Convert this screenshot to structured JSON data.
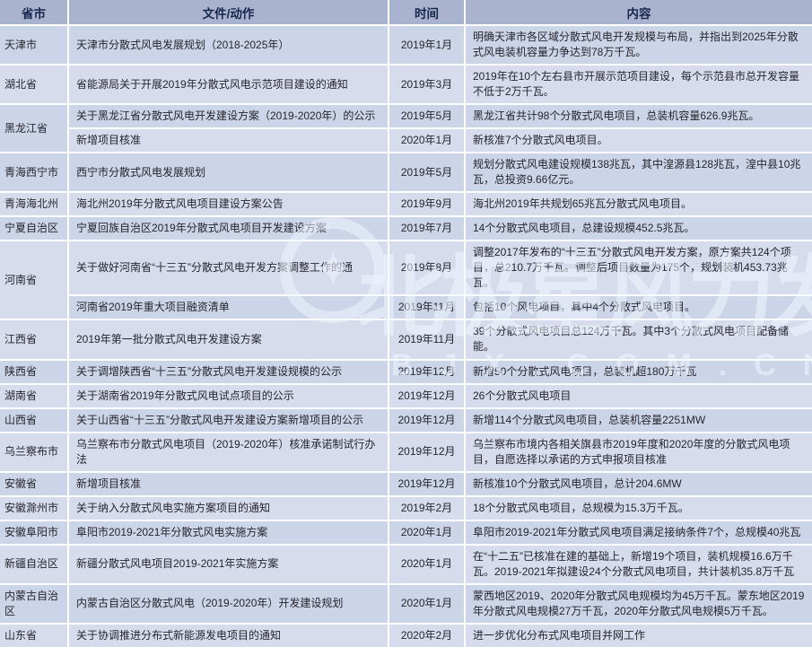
{
  "colors": {
    "header_bg": "#a9b3cd",
    "header_text": "#17264d",
    "row_dark": "#ccd4e7",
    "row_light": "#d6dcec",
    "body_text": "#26262e"
  },
  "watermark": {
    "cn": "北极星风力发电网",
    "latin": "BJX.COM.CN",
    "logo_star": "✦"
  },
  "table": {
    "headers": [
      "省市",
      "文件/动作",
      "时间",
      "内容"
    ],
    "groups": [
      {
        "province": "天津市",
        "entries": [
          {
            "doc": "天津市分散式风电发展规划（2018-2025年）",
            "time": "2019年1月",
            "content": "明确天津市各区域分散式风电开发规模与布局，并指出到2025年分散式风电装机容量力争达到78万千瓦。"
          }
        ]
      },
      {
        "province": "湖北省",
        "entries": [
          {
            "doc": "省能源局关于开展2019年分散式风电示范项目建设的通知",
            "time": "2019年3月",
            "content": "2019年在10个左右县市开展示范项目建设，每个示范县市总开发容量不低于2万千瓦。"
          }
        ]
      },
      {
        "province": "黑龙江省",
        "entries": [
          {
            "doc": "关于黑龙江省分散式风电开发建设方案（2019-2020年）的公示",
            "time": "2019年5月",
            "content": "黑龙江省共计98个分散式风电项目，总装机容量626.9兆瓦。"
          },
          {
            "doc": "新增项目核准",
            "time": "2020年1月",
            "content": "新核准7个分散式风电项目。"
          }
        ]
      },
      {
        "province": "青海西宁市",
        "entries": [
          {
            "doc": "西宁市分散式风电发展规划",
            "time": "2019年5月",
            "content": "规划分散式风电建设规模138兆瓦，其中湟源县128兆瓦，湟中县10兆瓦，总投资9.66亿元。"
          }
        ]
      },
      {
        "province": "青海海北州",
        "entries": [
          {
            "doc": "海北州2019年分散式风电项目建设方案公告",
            "time": "2019年9月",
            "content": "海北州2019年共规划65兆瓦分散式风电项目。"
          }
        ]
      },
      {
        "province": "宁夏自治区",
        "entries": [
          {
            "doc": "宁夏回族自治区2019年分散式风电项目开发建设方案",
            "time": "2019年7月",
            "content": "14个分散式风电项目，总建设规模452.5兆瓦。"
          }
        ]
      },
      {
        "province": "河南省",
        "entries": [
          {
            "doc": "关于做好河南省“十三五”分散式风电开发方案调整工作的通",
            "time": "2019年8月",
            "content": "调整2017年发布的“十三五”分散式风电开发方案，原方案共124个项目，总210.7万千瓦。调整后项目数量为175个，规划装机453.73兆瓦。"
          },
          {
            "doc": "河南省2019年重大项目融资清单",
            "time": "2019年11月",
            "content": "包括10个风电项目，其中4个分散式风电项目。"
          }
        ]
      },
      {
        "province": "江西省",
        "entries": [
          {
            "doc": "2019年第一批分散式风电开发建设方案",
            "time": "2019年11月",
            "content": "39个分散式风电项目总124万千瓦。其中3个分散式风电项目配备储能。"
          }
        ]
      },
      {
        "province": "陕西省",
        "entries": [
          {
            "doc": "关于调增陕西省“十三五”分散式风电开发建设规模的公示",
            "time": "2019年12月",
            "content": "新增50个分散式风电项目，总装机超180万千瓦"
          }
        ]
      },
      {
        "province": "湖南省",
        "entries": [
          {
            "doc": "关于湖南省2019年分散式风电试点项目的公示",
            "time": "2019年12月",
            "content": "26个分散式风电项目"
          }
        ]
      },
      {
        "province": "山西省",
        "entries": [
          {
            "doc": "关于山西省“十三五”分散式风电开发建设方案新增项目的公示",
            "time": "2019年12月",
            "content": "新增114个分散式风电项目，总装机容量2251MW"
          }
        ]
      },
      {
        "province": "乌兰察布市",
        "entries": [
          {
            "doc": "乌兰察布市分散式风电项目（2019-2020年）核准承诺制试行办法",
            "time": "2019年12月",
            "content": "乌兰察布市境内各相关旗县市2019年度和2020年度的分散式风电项目，自愿选择以承诺的方式申报项目核准"
          }
        ]
      },
      {
        "province": "安徽省",
        "entries": [
          {
            "doc": "新增项目核准",
            "time": "2019年12月",
            "content": "新核准10个分散式风电项目，总计204.6MW"
          }
        ]
      },
      {
        "province": "安徽滁州市",
        "entries": [
          {
            "doc": "关于纳入分散式风电实施方案项目的通知",
            "time": "2019年2月",
            "content": "18个分散式风电项目，总规模为15.3万千瓦。"
          }
        ]
      },
      {
        "province": "安徽阜阳市",
        "entries": [
          {
            "doc": "阜阳市2019-2021年分散式风电实施方案",
            "time": "2020年1月",
            "content": "阜阳市2019-2021年分散式风电项目满足接纳条件7个，总规模40兆瓦"
          }
        ]
      },
      {
        "province": "新疆自治区",
        "entries": [
          {
            "doc": "新疆分散式风电项目2019-2021年实施方案",
            "time": "2020年1月",
            "content": "在“十二五”已核准在建的基础上，新增19个项目，装机规模16.6万千瓦。2019-2021年拟建设24个分散式风电项目，共计装机35.8万千瓦"
          }
        ]
      },
      {
        "province": "内蒙古自治区",
        "entries": [
          {
            "doc": "内蒙古自治区分散式风电（2019-2020年）开发建设规划",
            "time": "2020年1月",
            "content": "蒙西地区2019、2020年分散式风电规模均为45万千瓦。蒙东地区2019年分散式风电规模27万千瓦，2020年分散式风电规模5万千瓦。"
          }
        ]
      },
      {
        "province": "山东省",
        "entries": [
          {
            "doc": "关于协调推进分布式新能源发电项目的通知",
            "time": "2020年2月",
            "content": "进一步优化分布式风电项目并网工作"
          }
        ]
      }
    ]
  }
}
